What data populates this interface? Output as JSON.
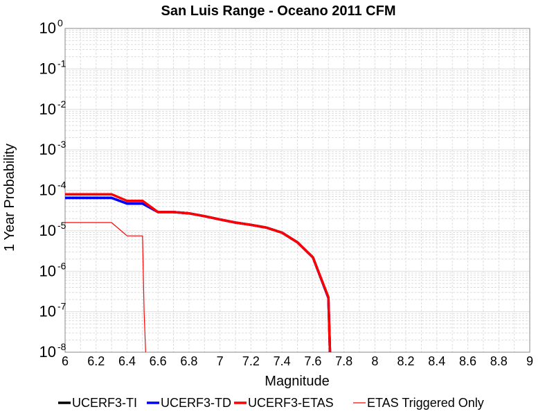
{
  "chart_data": {
    "type": "line",
    "title": "San Luis Range - Oceano 2011 CFM",
    "xlabel": "Magnitude",
    "ylabel": "1 Year Probability",
    "xlim": [
      6,
      9
    ],
    "ylim": [
      1e-08,
      1
    ],
    "yscale": "log",
    "xticks": [
      "6",
      "6.2",
      "6.4",
      "6.6",
      "6.8",
      "7",
      "7.2",
      "7.4",
      "7.6",
      "7.8",
      "8",
      "8.2",
      "8.4",
      "8.6",
      "8.8",
      "9"
    ],
    "ytick_base": "10",
    "ytick_exponents": [
      "0",
      "-1",
      "-2",
      "-3",
      "-4",
      "-5",
      "-6",
      "-7",
      "-8"
    ],
    "grid": true,
    "legend_position": "bottom",
    "series": [
      {
        "name": "UCERF3-TI",
        "color": "#000000",
        "style": "thick",
        "x": [
          6.0,
          6.1,
          6.2,
          6.3,
          6.4,
          6.5,
          6.6,
          6.7,
          6.8,
          6.9,
          7.0,
          7.1,
          7.2,
          7.3,
          7.4,
          7.5,
          7.6,
          7.7,
          7.71
        ],
        "y": [
          6.5e-05,
          6.5e-05,
          6.5e-05,
          6.5e-05,
          4.7e-05,
          4.7e-05,
          2.9e-05,
          2.9e-05,
          2.7e-05,
          2.3e-05,
          1.9e-05,
          1.6e-05,
          1.4e-05,
          1.2e-05,
          9e-06,
          5.2e-06,
          2.2e-06,
          2.2e-07,
          1e-08
        ]
      },
      {
        "name": "UCERF3-TD",
        "color": "#0000ff",
        "style": "thick",
        "x": [
          6.0,
          6.1,
          6.2,
          6.3,
          6.4,
          6.5,
          6.6,
          6.7,
          6.8,
          6.9,
          7.0,
          7.1,
          7.2,
          7.3,
          7.4,
          7.5,
          7.6,
          7.7,
          7.71
        ],
        "y": [
          6.5e-05,
          6.5e-05,
          6.5e-05,
          6.5e-05,
          4.7e-05,
          4.7e-05,
          2.9e-05,
          2.9e-05,
          2.7e-05,
          2.3e-05,
          1.9e-05,
          1.6e-05,
          1.4e-05,
          1.2e-05,
          9e-06,
          5.2e-06,
          2.2e-06,
          2.2e-07,
          1e-08
        ]
      },
      {
        "name": "UCERF3-ETAS",
        "color": "#ff0000",
        "style": "thick",
        "x": [
          6.0,
          6.1,
          6.2,
          6.3,
          6.4,
          6.5,
          6.6,
          6.7,
          6.8,
          6.9,
          7.0,
          7.1,
          7.2,
          7.3,
          7.4,
          7.5,
          7.6,
          7.7,
          7.71
        ],
        "y": [
          8e-05,
          8e-05,
          8e-05,
          8e-05,
          5.5e-05,
          5.5e-05,
          2.9e-05,
          2.9e-05,
          2.7e-05,
          2.3e-05,
          1.9e-05,
          1.6e-05,
          1.4e-05,
          1.2e-05,
          9e-06,
          5.2e-06,
          2.2e-06,
          2.3e-07,
          1e-08
        ]
      },
      {
        "name": "ETAS Triggered Only",
        "color": "#ff0000",
        "style": "thin",
        "x": [
          6.0,
          6.1,
          6.2,
          6.3,
          6.4,
          6.5,
          6.51,
          6.52
        ],
        "y": [
          1.6e-05,
          1.6e-05,
          1.6e-05,
          1.6e-05,
          7.5e-06,
          7.5e-06,
          1e-07,
          1e-08
        ]
      }
    ]
  }
}
